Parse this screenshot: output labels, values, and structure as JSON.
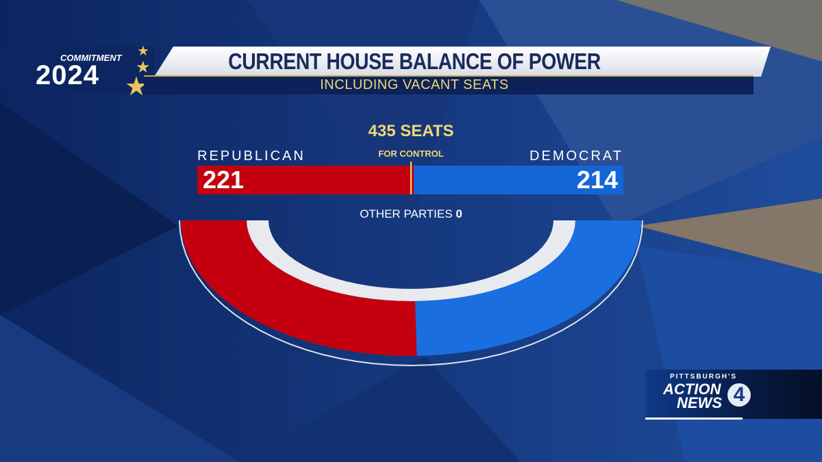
{
  "header": {
    "title": "CURRENT HOUSE BALANCE OF POWER",
    "subtitle": "INCLUDING VACANT SEATS"
  },
  "logo": {
    "line1": "COMMITMENT",
    "line2": "2024"
  },
  "station": {
    "line1": "PITTSBURGH'S",
    "line2": "ACTION",
    "line3": "NEWS",
    "number": "4"
  },
  "colors": {
    "republican": "#c40010",
    "democrat": "#1466d6",
    "accent": "#f1d878",
    "background": "#0f2a66"
  },
  "chart_data": {
    "type": "bar",
    "total_label": "435 SEATS",
    "control_label": "FOR CONTROL",
    "total": 435,
    "series": [
      {
        "name": "REPUBLICAN",
        "value": 221,
        "value_label": "221"
      },
      {
        "name": "DEMOCRAT",
        "value": 214,
        "value_label": "214"
      }
    ],
    "other": {
      "label": "OTHER PARTIES",
      "value": 0,
      "value_label": "0"
    }
  }
}
